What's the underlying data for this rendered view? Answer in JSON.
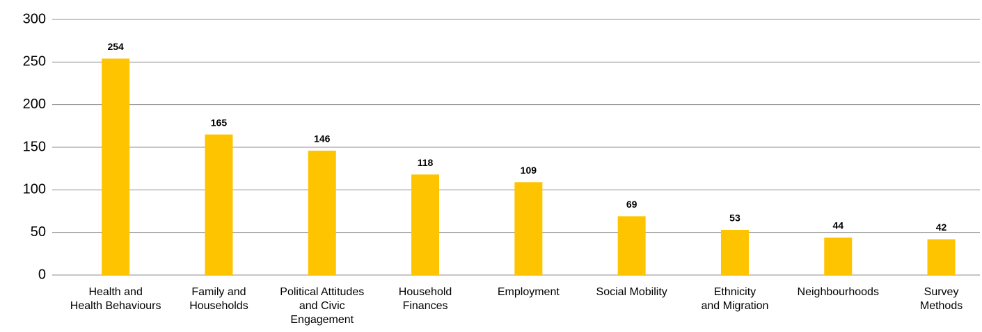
{
  "chart_data": {
    "type": "bar",
    "categories": [
      "Health and\nHealth Behaviours",
      "Family and\nHouseholds",
      "Political Attitudes\nand Civic\nEngagement",
      "Household\nFinances",
      "Employment",
      "Social Mobility",
      "Ethnicity\nand Migration",
      "Neighbourhoods",
      "Survey\nMethods"
    ],
    "values": [
      254,
      165,
      146,
      118,
      109,
      69,
      53,
      44,
      42
    ],
    "color": "#ffc400",
    "ylim": [
      0,
      300
    ],
    "yticks": [
      0,
      50,
      100,
      150,
      200,
      250,
      300
    ],
    "grid": true
  }
}
